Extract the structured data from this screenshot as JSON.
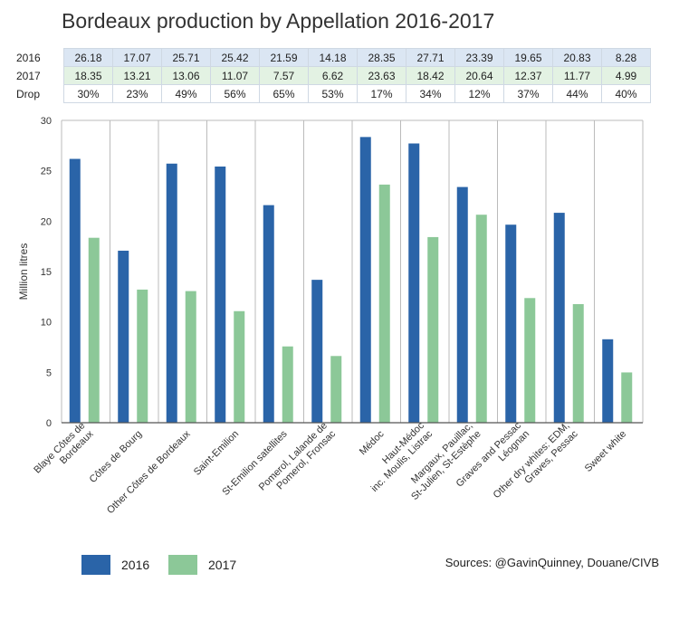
{
  "title": "Bordeaux production by Appellation 2016-2017",
  "table": {
    "rows": [
      {
        "label": "2016",
        "cells": [
          "26.18",
          "17.07",
          "25.71",
          "25.42",
          "21.59",
          "14.18",
          "28.35",
          "27.71",
          "23.39",
          "19.65",
          "20.83",
          "8.28"
        ]
      },
      {
        "label": "2017",
        "cells": [
          "18.35",
          "13.21",
          "13.06",
          "11.07",
          "7.57",
          "6.62",
          "23.63",
          "18.42",
          "20.64",
          "12.37",
          "11.77",
          "4.99"
        ]
      },
      {
        "label": "Drop",
        "cells": [
          "30%",
          "23%",
          "49%",
          "56%",
          "65%",
          "53%",
          "17%",
          "34%",
          "12%",
          "37%",
          "44%",
          "40%"
        ]
      }
    ]
  },
  "chart_data": {
    "type": "bar",
    "categories": [
      [
        "Blaye Côtes de",
        "Bordeaux"
      ],
      [
        "Côtes de Bourg"
      ],
      [
        "Other Côtes de Bordeaux"
      ],
      [
        "Saint-Emilion"
      ],
      [
        "St-Emilion satellites"
      ],
      [
        "Pomerol, Lalande de",
        "Pomerol, Fronsac"
      ],
      [
        "Médoc"
      ],
      [
        "Haut-Médoc",
        "inc. Moulis, Listrac"
      ],
      [
        "Margaux, Pauillac,",
        "St-Julien, St-Estèphe"
      ],
      [
        "Graves and Pessac",
        "Léognan"
      ],
      [
        "Other dry whites: EDM,",
        "Graves, Pessac"
      ],
      [
        "Sweet white"
      ]
    ],
    "series": [
      {
        "name": "2016",
        "color": "#2a64a8",
        "values": [
          26.18,
          17.07,
          25.71,
          25.42,
          21.59,
          14.18,
          28.35,
          27.71,
          23.39,
          19.65,
          20.83,
          8.28
        ]
      },
      {
        "name": "2017",
        "color": "#8cc898",
        "values": [
          18.35,
          13.21,
          13.06,
          11.07,
          7.57,
          6.62,
          23.63,
          18.42,
          20.64,
          12.37,
          11.77,
          4.99
        ]
      }
    ],
    "ylabel": "Million litres",
    "ylim": [
      0,
      30
    ],
    "yticks": [
      0,
      5,
      10,
      15,
      20,
      25,
      30
    ],
    "grid": "vertical separators between categories",
    "legend": "bottom-left"
  },
  "legend_items": [
    {
      "label": "2016",
      "color": "#2a64a8"
    },
    {
      "label": "2017",
      "color": "#8cc898"
    }
  ],
  "source": "Sources: @GavinQuinney, Douane/CIVB"
}
